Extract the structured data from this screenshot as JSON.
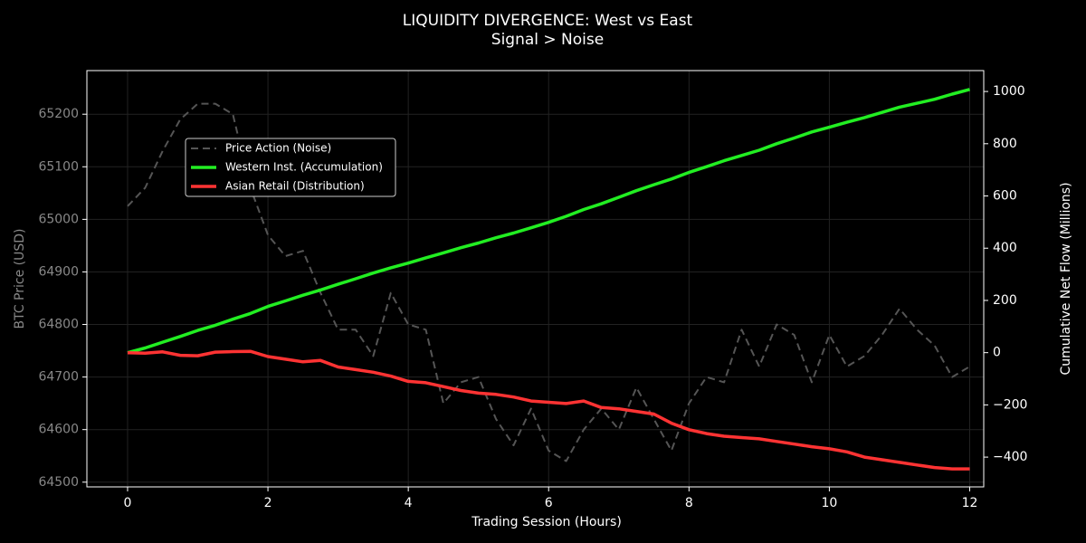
{
  "chart_data": {
    "type": "line",
    "title": "LIQUIDITY DIVERGENCE: West vs East",
    "subtitle": "Signal > Noise",
    "xlabel": "Trading Session (Hours)",
    "ylabel": "BTC Price (USD)",
    "y2label": "Cumulative Net Flow (Millions)",
    "x": [
      0,
      0.25,
      0.5,
      0.75,
      1,
      1.25,
      1.5,
      1.75,
      2,
      2.25,
      2.5,
      2.75,
      3,
      3.25,
      3.5,
      3.75,
      4,
      4.25,
      4.5,
      4.75,
      5,
      5.25,
      5.5,
      5.75,
      6,
      6.25,
      6.5,
      6.75,
      7,
      7.25,
      7.5,
      7.75,
      8,
      8.25,
      8.5,
      8.75,
      9,
      9.25,
      9.5,
      9.75,
      10,
      10.25,
      10.5,
      10.75,
      11,
      11.25,
      11.5,
      11.75,
      12
    ],
    "series": [
      {
        "name": "Price Action (Noise)",
        "color": "#555555",
        "dashed": true,
        "axis": "y",
        "values": [
          65025,
          65060,
          65130,
          65190,
          65220,
          65220,
          65200,
          65060,
          64970,
          64930,
          64940,
          64860,
          64790,
          64790,
          64740,
          64860,
          64800,
          64790,
          64650,
          64690,
          64700,
          64620,
          64570,
          64640,
          64560,
          64540,
          64600,
          64640,
          64600,
          64680,
          64620,
          64560,
          64650,
          64700,
          64690,
          64790,
          64720,
          64800,
          64780,
          64690,
          64780,
          64720,
          64740,
          64780,
          64830,
          64790,
          64760,
          64700,
          64720
        ]
      },
      {
        "name": "Western Inst. (Accumulation)",
        "color": "#22ee22",
        "axis": "y2",
        "values": [
          0,
          18,
          40,
          62,
          85,
          105,
          128,
          150,
          177,
          198,
          220,
          240,
          262,
          283,
          305,
          325,
          343,
          363,
          382,
          402,
          420,
          440,
          458,
          478,
          499,
          522,
          548,
          570,
          595,
          620,
          643,
          665,
          690,
          712,
          735,
          755,
          775,
          800,
          822,
          845,
          863,
          882,
          900,
          920,
          940,
          955,
          970,
          990,
          1008
        ]
      },
      {
        "name": "Asian Retail (Distribution)",
        "color": "#ff3333",
        "axis": "y2",
        "values": [
          0,
          -2,
          3,
          -10,
          -12,
          2,
          4,
          5,
          -15,
          -25,
          -35,
          -30,
          -55,
          -65,
          -75,
          -90,
          -110,
          -115,
          -130,
          -145,
          -155,
          -160,
          -170,
          -185,
          -190,
          -195,
          -185,
          -210,
          -215,
          -225,
          -235,
          -270,
          -295,
          -310,
          -320,
          -325,
          -330,
          -340,
          -350,
          -360,
          -368,
          -380,
          -400,
          -410,
          -420,
          -430,
          -440,
          -445,
          -445
        ]
      }
    ],
    "xlim": [
      -0.58,
      12.2
    ],
    "xticks": [
      0,
      2,
      4,
      6,
      8,
      10,
      12
    ],
    "ylim": [
      64491,
      65283
    ],
    "yticks": [
      64500,
      64600,
      64700,
      64800,
      64900,
      65000,
      65100,
      65200
    ],
    "y2lim": [
      -514,
      1080
    ],
    "y2ticks": [
      {
        "value": -400,
        "label": "−400"
      },
      {
        "value": -200,
        "label": "−200"
      },
      0,
      200,
      400,
      600,
      800,
      1000
    ],
    "grid": true,
    "legend": "upper left"
  }
}
